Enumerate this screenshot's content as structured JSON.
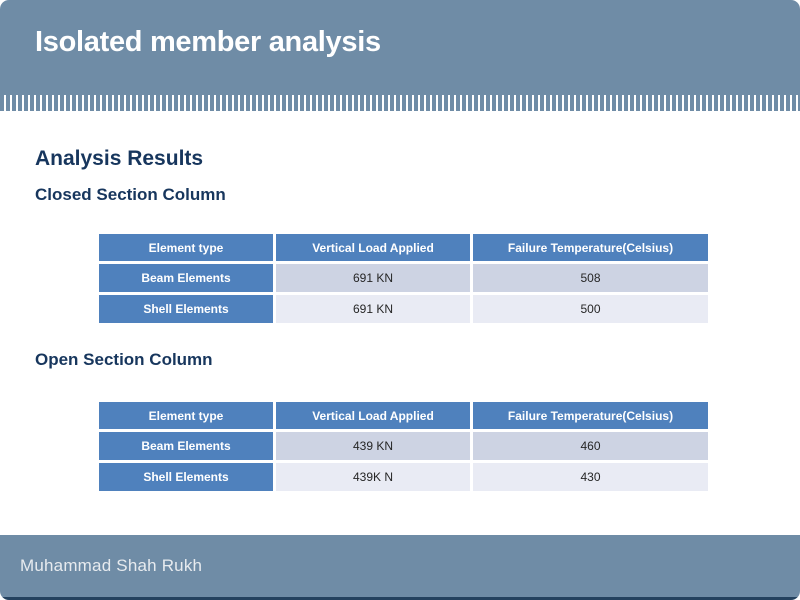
{
  "slide": {
    "title": "Isolated member analysis",
    "footer_name": "Muhammad Shah Rukh"
  },
  "content": {
    "heading": "Analysis Results",
    "sections": [
      {
        "subheading": "Closed Section Column",
        "table": {
          "headers": [
            "Element type",
            "Vertical Load Applied",
            "Failure Temperature(Celsius)"
          ],
          "rows": [
            {
              "element": "Beam Elements",
              "load": "691 KN",
              "temperature": "508"
            },
            {
              "element": "Shell Elements",
              "load": "691 KN",
              "temperature": "500"
            }
          ]
        }
      },
      {
        "subheading": "Open Section Column",
        "table": {
          "headers": [
            "Element type",
            "Vertical Load Applied",
            "Failure Temperature(Celsius)"
          ],
          "rows": [
            {
              "element": "Beam Elements",
              "load": "439 KN",
              "temperature": "460"
            },
            {
              "element": "Shell Elements",
              "load": "439K N",
              "temperature": "430"
            }
          ]
        }
      }
    ]
  },
  "colors": {
    "band": "#6F8CA6",
    "table_header": "#4F81BD",
    "row_first_shade": "#CDD3E3",
    "row_second_shade": "#E9EBF4",
    "heading_text": "#17365D",
    "bottom_accent": "#24425F",
    "title_text": "#FFFFFF"
  }
}
